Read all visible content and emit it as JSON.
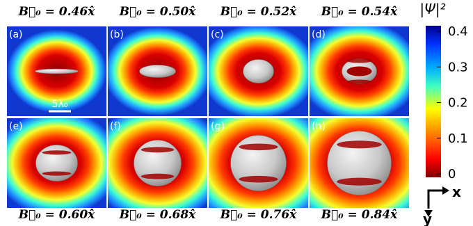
{
  "panels": [
    {
      "label": "(a)",
      "title": "B⃗₀ = 0.46x̂"
    },
    {
      "label": "(b)",
      "title": "B⃗₀ = 0.50x̂"
    },
    {
      "label": "(c)",
      "title": "B⃗₀ = 0.52x̂"
    },
    {
      "label": "(d)",
      "title": "B⃗₀ = 0.54x̂"
    },
    {
      "label": "(e)",
      "title": "B⃗₀ = 0.60x̂"
    },
    {
      "label": "(f)",
      "title": "B⃗₀ = 0.68x̂"
    },
    {
      "label": "(g)",
      "title": "B⃗₀ = 0.76x̂"
    },
    {
      "label": "(h)",
      "title": "B⃗₀ = 0.84x̂"
    }
  ],
  "scale_bar": "5λ₀",
  "colorbar": {
    "label": "|Ψ|²",
    "lim": [
      0,
      0.4
    ],
    "ticks": [
      0,
      0.1,
      0.2,
      0.3,
      0.4
    ]
  },
  "axes": {
    "x": "x",
    "y": "y"
  }
}
